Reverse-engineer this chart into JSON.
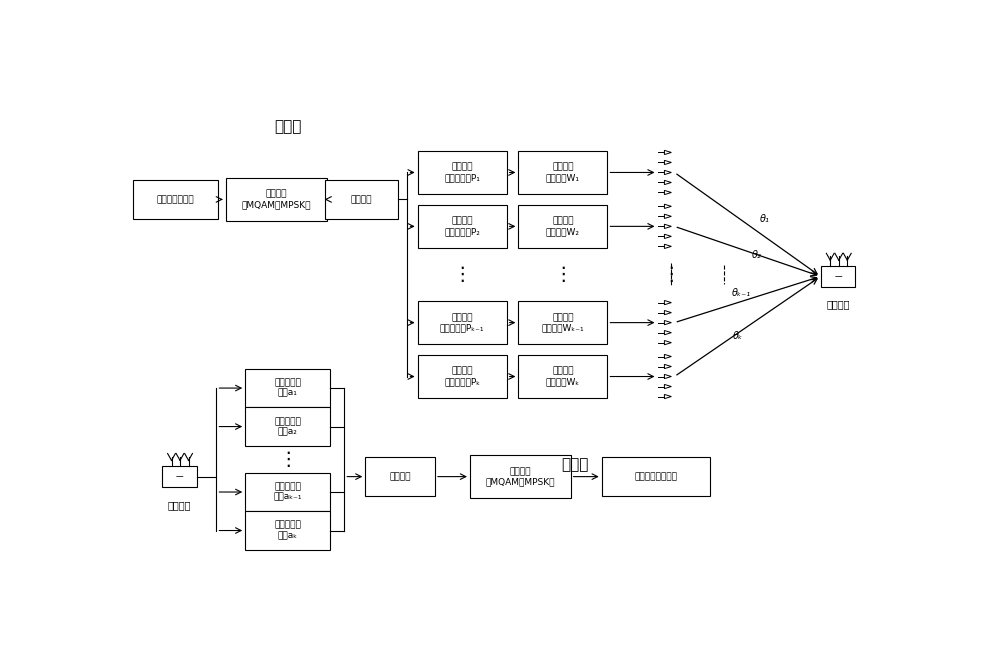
{
  "bg_color": "#ffffff",
  "line_color": "#000000",
  "box_color": "#ffffff",
  "text_color": "#000000",
  "title_top": "发射端",
  "title_bottom": "接收端",
  "top_precoders": [
    "方向调制\n预编码矩阵P₁",
    "方向调制\n预编码矩阵P₂",
    "方向调制\n预编码矩阵Pₖ₋₁",
    "方向调制\n预编码矩阵Pₖ"
  ],
  "top_noise": [
    "人工噪声\n投影矩阵W₁",
    "人工噪声\n投影矩阵W₂",
    "人工噪声\n投影矩阵Wₖ₋₁",
    "人工噪声\n投影矩阵Wₖ"
  ],
  "theta_labels": [
    "θ₁",
    "θ₂",
    "θₖ₋₁",
    "θₖ"
  ],
  "bottom_receiver": [
    "多波束接收\n权值a₁",
    "多波束接收\n权值a₂",
    "多波束接收\n权值aₖ₋₁",
    "多波束接收\n权值aₖ"
  ],
  "bottom_chain": [
    "并串转换",
    "基带解调\n（MQAM或MPSK）",
    "恢复的二进制序列"
  ],
  "legit_user_label": "合法用户"
}
